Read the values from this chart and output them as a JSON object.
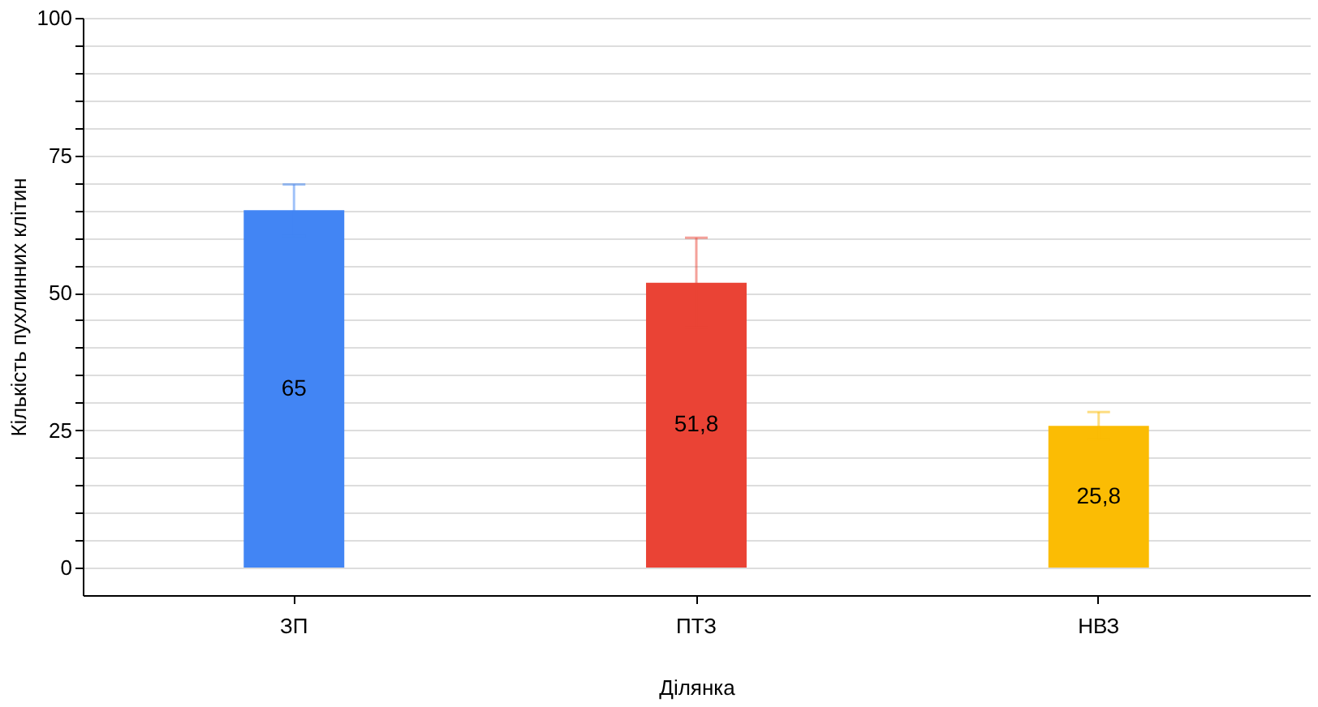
{
  "chart_data": {
    "type": "bar",
    "xlabel": "Ділянка",
    "ylabel": "Кількість пухлинних клітин",
    "categories": [
      "ЗП",
      "ПТЗ",
      "НВЗ"
    ],
    "values": [
      65,
      51.8,
      25.8
    ],
    "colors": [
      "#4285f4",
      "#ea4335",
      "#fbbc04"
    ],
    "errors": [
      4.7,
      8.2,
      2.5
    ],
    "value_labels": [
      "65",
      "51,8",
      "25,8"
    ],
    "ylim": [
      -5,
      100
    ],
    "yticks": [
      0,
      {
        "value": 5,
        "label": null
      },
      {
        "value": 10,
        "label": null
      },
      {
        "value": 15,
        "label": null
      },
      {
        "value": 20,
        "label": null
      },
      25,
      {
        "value": 30,
        "label": null
      },
      {
        "value": 35,
        "label": null
      },
      {
        "value": 40,
        "label": null
      },
      {
        "value": 45,
        "label": null
      },
      50,
      {
        "value": 55,
        "label": null
      },
      {
        "value": 60,
        "label": null
      },
      {
        "value": 65,
        "label": null
      },
      {
        "value": 70,
        "label": null
      },
      75,
      {
        "value": 80,
        "label": null
      },
      {
        "value": 85,
        "label": null
      },
      {
        "value": 90,
        "label": null
      },
      {
        "value": 95,
        "label": null
      },
      100
    ],
    "grid": "y"
  }
}
